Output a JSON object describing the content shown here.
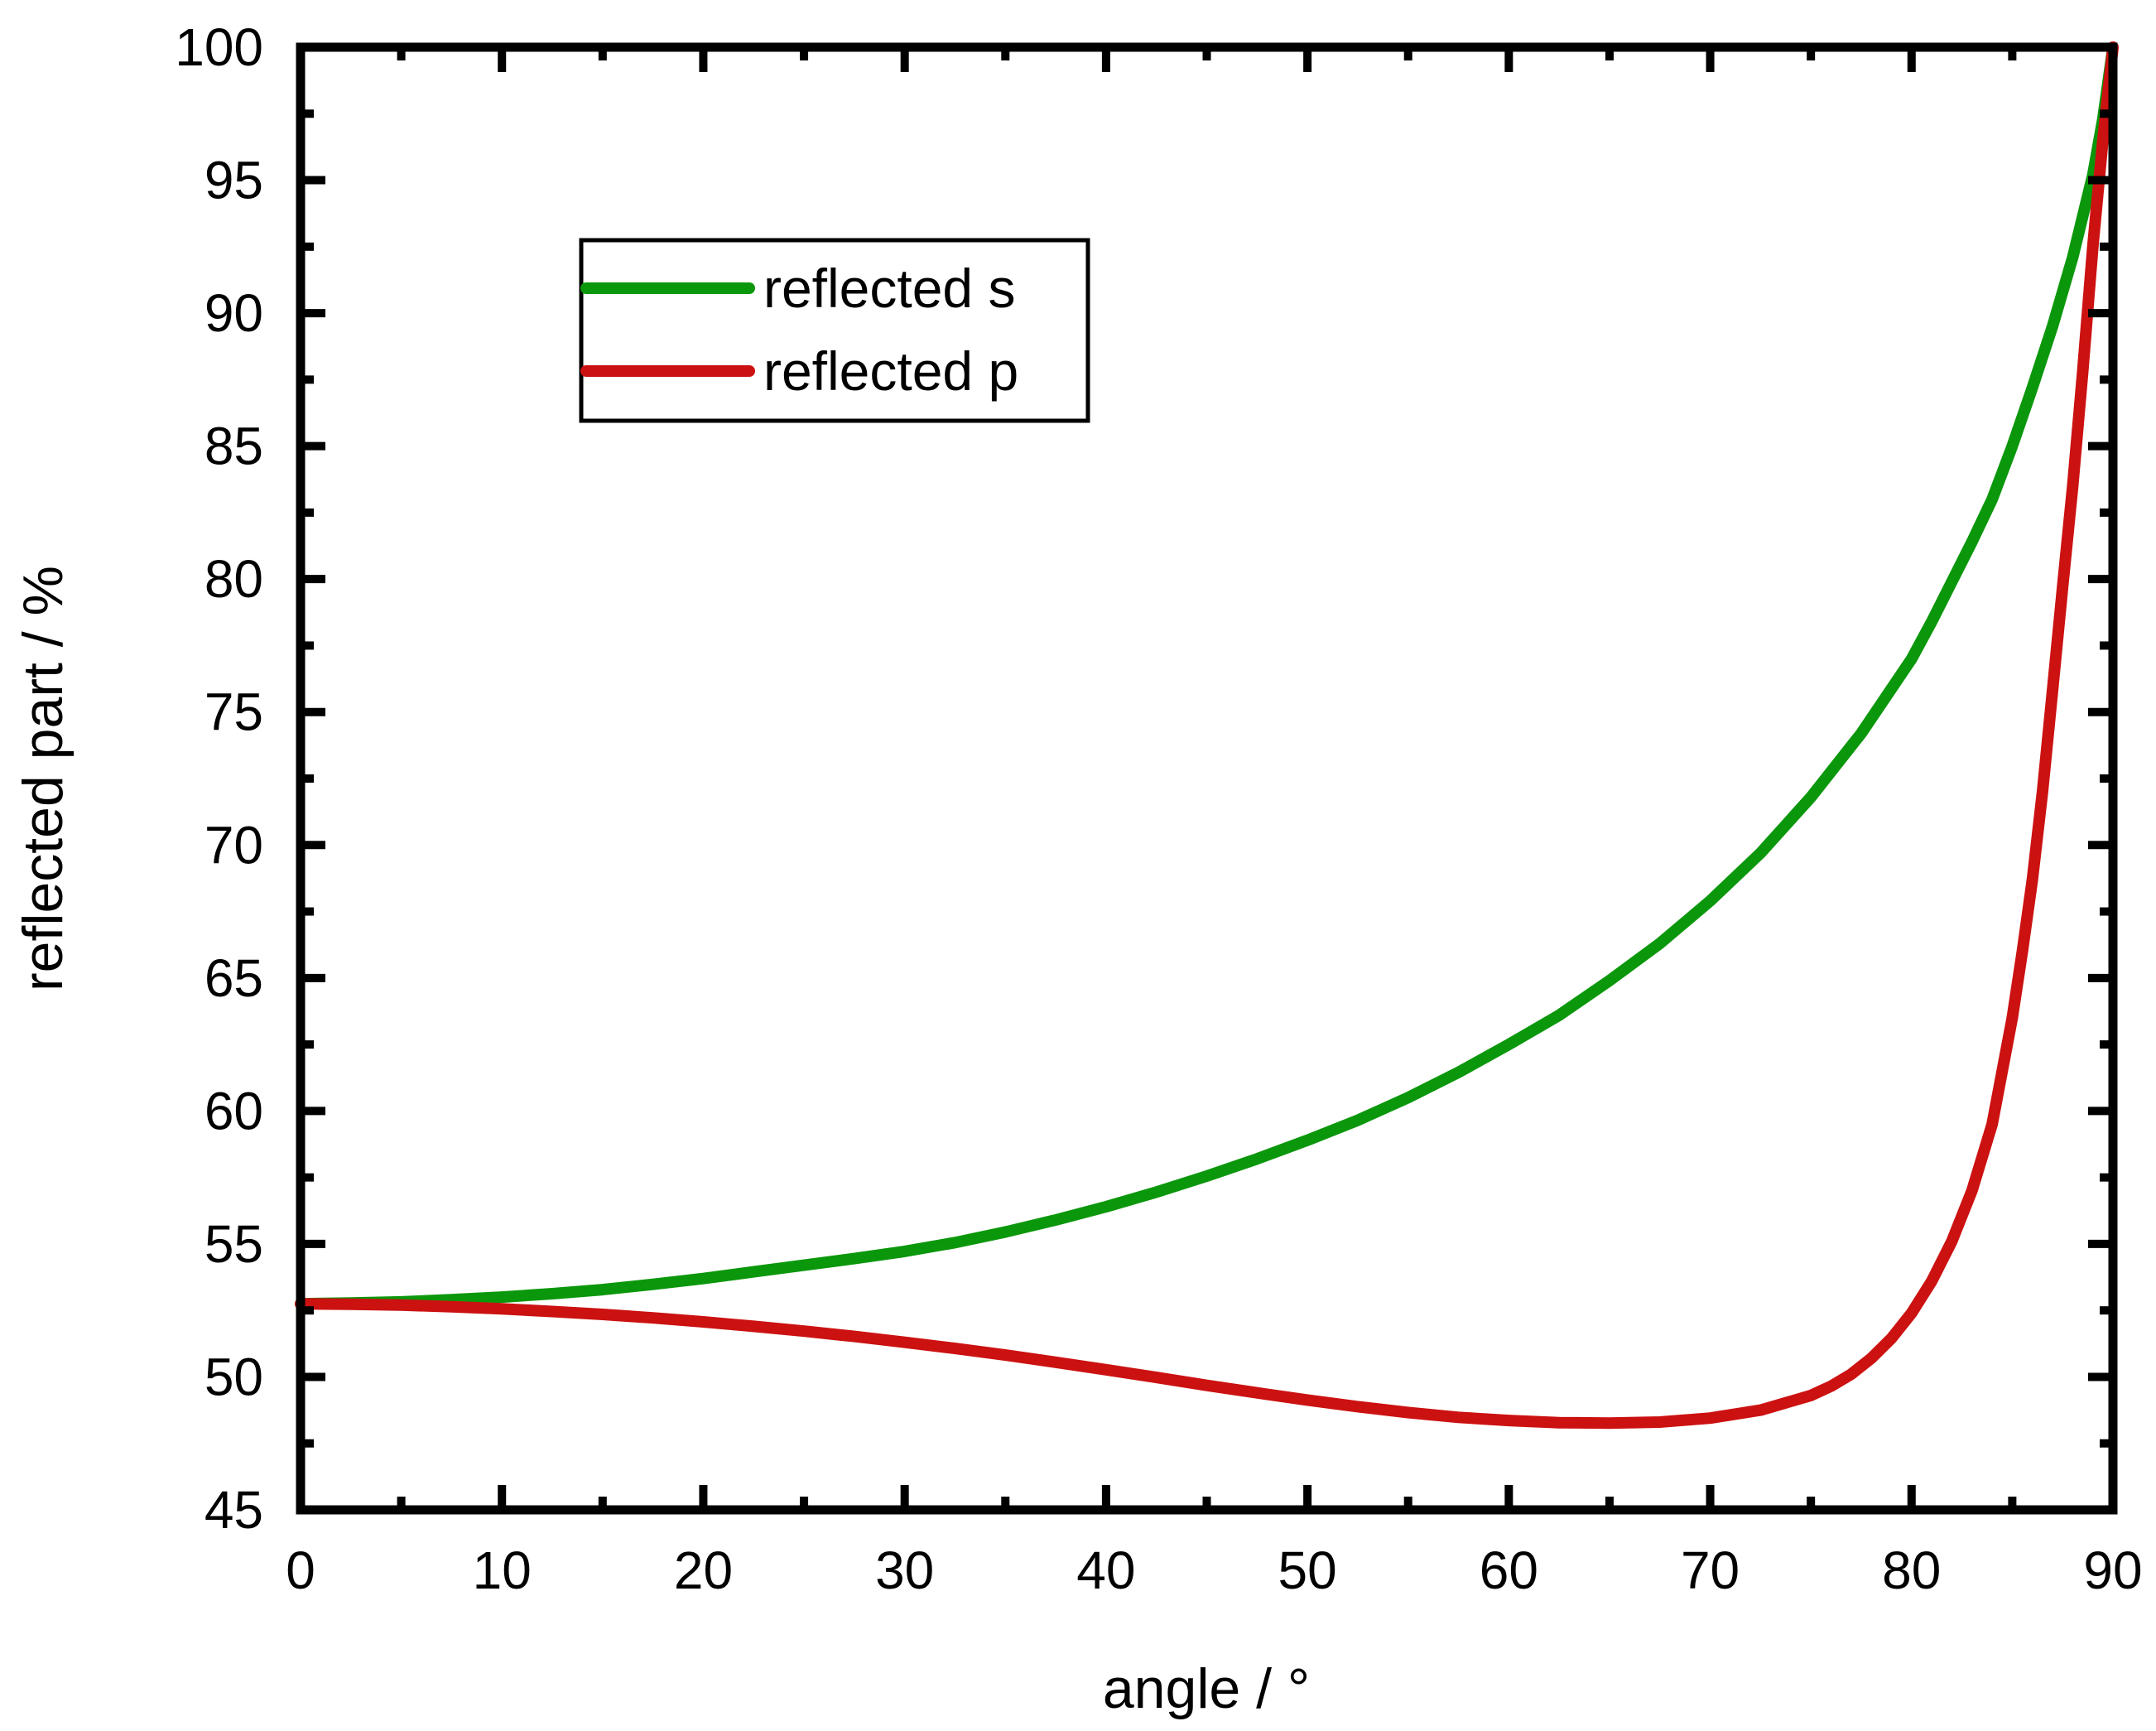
{
  "chart_data": {
    "type": "line",
    "title": "",
    "xlabel": "angle / °",
    "ylabel": "reflected part / %",
    "xlim": [
      0,
      90
    ],
    "ylim": [
      45,
      100
    ],
    "grid": false,
    "background": "#ffffff",
    "axis_color": "#000000",
    "legend": {
      "position": "upper-left-inside",
      "border_color": "#000000",
      "fill": "#ffffff"
    },
    "x_axis": {
      "major_ticks": [
        0,
        10,
        20,
        30,
        40,
        50,
        60,
        70,
        80,
        90
      ],
      "minor_ticks": [
        5,
        15,
        25,
        35,
        45,
        55,
        65,
        75,
        85
      ],
      "tick_labels": [
        "0",
        "10",
        "20",
        "30",
        "40",
        "50",
        "60",
        "70",
        "80",
        "90"
      ]
    },
    "y_axis": {
      "major_ticks": [
        45,
        50,
        55,
        60,
        65,
        70,
        75,
        80,
        85,
        90,
        95,
        100
      ],
      "minor_ticks": [
        47.5,
        52.5,
        57.5,
        62.5,
        67.5,
        72.5,
        77.5,
        82.5,
        87.5,
        92.5,
        97.5
      ],
      "tick_labels": [
        "45",
        "50",
        "55",
        "60",
        "65",
        "70",
        "75",
        "80",
        "85",
        "90",
        "95",
        "100"
      ]
    },
    "series": [
      {
        "name": "reflected s",
        "color": "#0b970b",
        "x": [
          0,
          2.5,
          5,
          7.5,
          10,
          12.5,
          15,
          17.5,
          20,
          22.5,
          25,
          27.5,
          30,
          32.5,
          35,
          37.5,
          40,
          42.5,
          45,
          47.5,
          50,
          52.5,
          55,
          57.5,
          60,
          62.5,
          65,
          67.5,
          70,
          72.5,
          75,
          77.5,
          80,
          81,
          82,
          83,
          84,
          85,
          86,
          87,
          88,
          89,
          89.5,
          90
        ],
        "y": [
          52.75,
          52.78,
          52.82,
          52.9,
          53.0,
          53.13,
          53.28,
          53.48,
          53.7,
          53.95,
          54.2,
          54.45,
          54.72,
          55.05,
          55.45,
          55.9,
          56.4,
          56.95,
          57.55,
          58.2,
          58.9,
          59.65,
          60.5,
          61.45,
          62.5,
          63.6,
          64.9,
          66.3,
          67.9,
          69.7,
          71.8,
          74.2,
          77.0,
          78.4,
          79.9,
          81.4,
          83.0,
          85.0,
          87.2,
          89.5,
          92.1,
          95.2,
          97.3,
          100
        ]
      },
      {
        "name": "reflected p",
        "color": "#cc1111",
        "x": [
          0,
          2.5,
          5,
          7.5,
          10,
          12.5,
          15,
          17.5,
          20,
          22.5,
          25,
          27.5,
          30,
          32.5,
          35,
          37.5,
          40,
          42.5,
          45,
          47.5,
          50,
          52.5,
          55,
          57.5,
          60,
          62.5,
          65,
          67.5,
          70,
          72.5,
          75,
          76,
          77,
          78,
          79,
          80,
          81,
          82,
          83,
          84,
          85,
          85.5,
          86,
          86.5,
          87,
          87.5,
          88,
          88.5,
          89,
          89.5,
          90
        ],
        "y": [
          52.75,
          52.73,
          52.7,
          52.64,
          52.56,
          52.46,
          52.35,
          52.22,
          52.07,
          51.9,
          51.72,
          51.52,
          51.3,
          51.07,
          50.82,
          50.55,
          50.27,
          49.98,
          49.68,
          49.4,
          49.13,
          48.88,
          48.66,
          48.48,
          48.36,
          48.28,
          48.26,
          48.3,
          48.45,
          48.75,
          49.3,
          49.65,
          50.1,
          50.7,
          51.45,
          52.4,
          53.6,
          55.1,
          57.0,
          59.5,
          63.5,
          66.0,
          68.7,
          72.0,
          75.8,
          79.7,
          83.5,
          87.8,
          92.5,
          96.5,
          100
        ]
      }
    ]
  }
}
